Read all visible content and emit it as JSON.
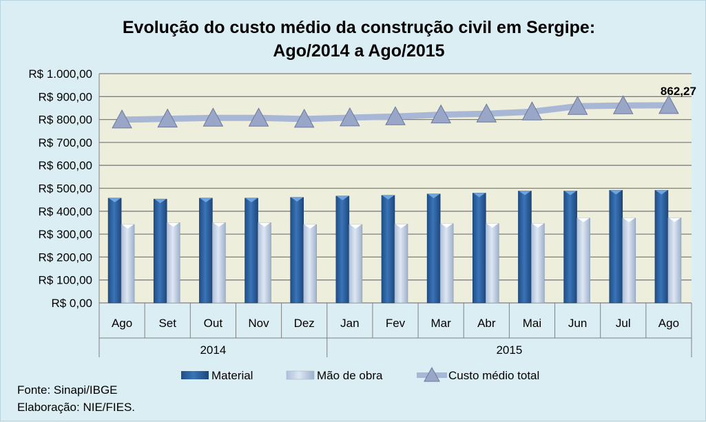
{
  "chart_data": {
    "type": "bar",
    "title_line1": "Evolução do custo médio da construção civil em Sergipe:",
    "title_line2": "Ago/2014 a Ago/2015",
    "categories": [
      "Ago",
      "Set",
      "Out",
      "Nov",
      "Dez",
      "Jan",
      "Fev",
      "Mar",
      "Abr",
      "Mai",
      "Jun",
      "Jul",
      "Ago"
    ],
    "groups": [
      {
        "label": "2014",
        "count": 5
      },
      {
        "label": "2015",
        "count": 8
      }
    ],
    "ylim": [
      0,
      1000
    ],
    "yticks": [
      "R$ 0,00",
      "R$ 100,00",
      "R$ 200,00",
      "R$ 300,00",
      "R$ 400,00",
      "R$ 500,00",
      "R$ 600,00",
      "R$ 700,00",
      "R$ 800,00",
      "R$ 900,00",
      "R$ 1.000,00"
    ],
    "series": [
      {
        "name": "Material",
        "kind": "bar",
        "values": [
          457,
          453,
          457,
          457,
          460,
          466,
          469,
          475,
          479,
          488,
          488,
          491,
          491
        ]
      },
      {
        "name": "Mão de obra",
        "kind": "bar",
        "values": [
          342,
          350,
          350,
          350,
          342,
          342,
          344,
          346,
          346,
          346,
          370,
          370,
          371
        ]
      },
      {
        "name": "Custo médio total",
        "kind": "line",
        "values": [
          799,
          803,
          807,
          807,
          802,
          808,
          813,
          821,
          825,
          834,
          858,
          861,
          862.27
        ]
      }
    ],
    "data_label": "862,27",
    "grid": true,
    "legend": "bottom",
    "colors": {
      "material": "#2f64a3",
      "mao": "#c6d6ea",
      "line": "#a9b7d6",
      "plot_bg": "#eeeedc"
    }
  },
  "footer": {
    "source": "Fonte: Sinapi/IBGE",
    "credit": "Elaboração: NIE/FIES."
  }
}
